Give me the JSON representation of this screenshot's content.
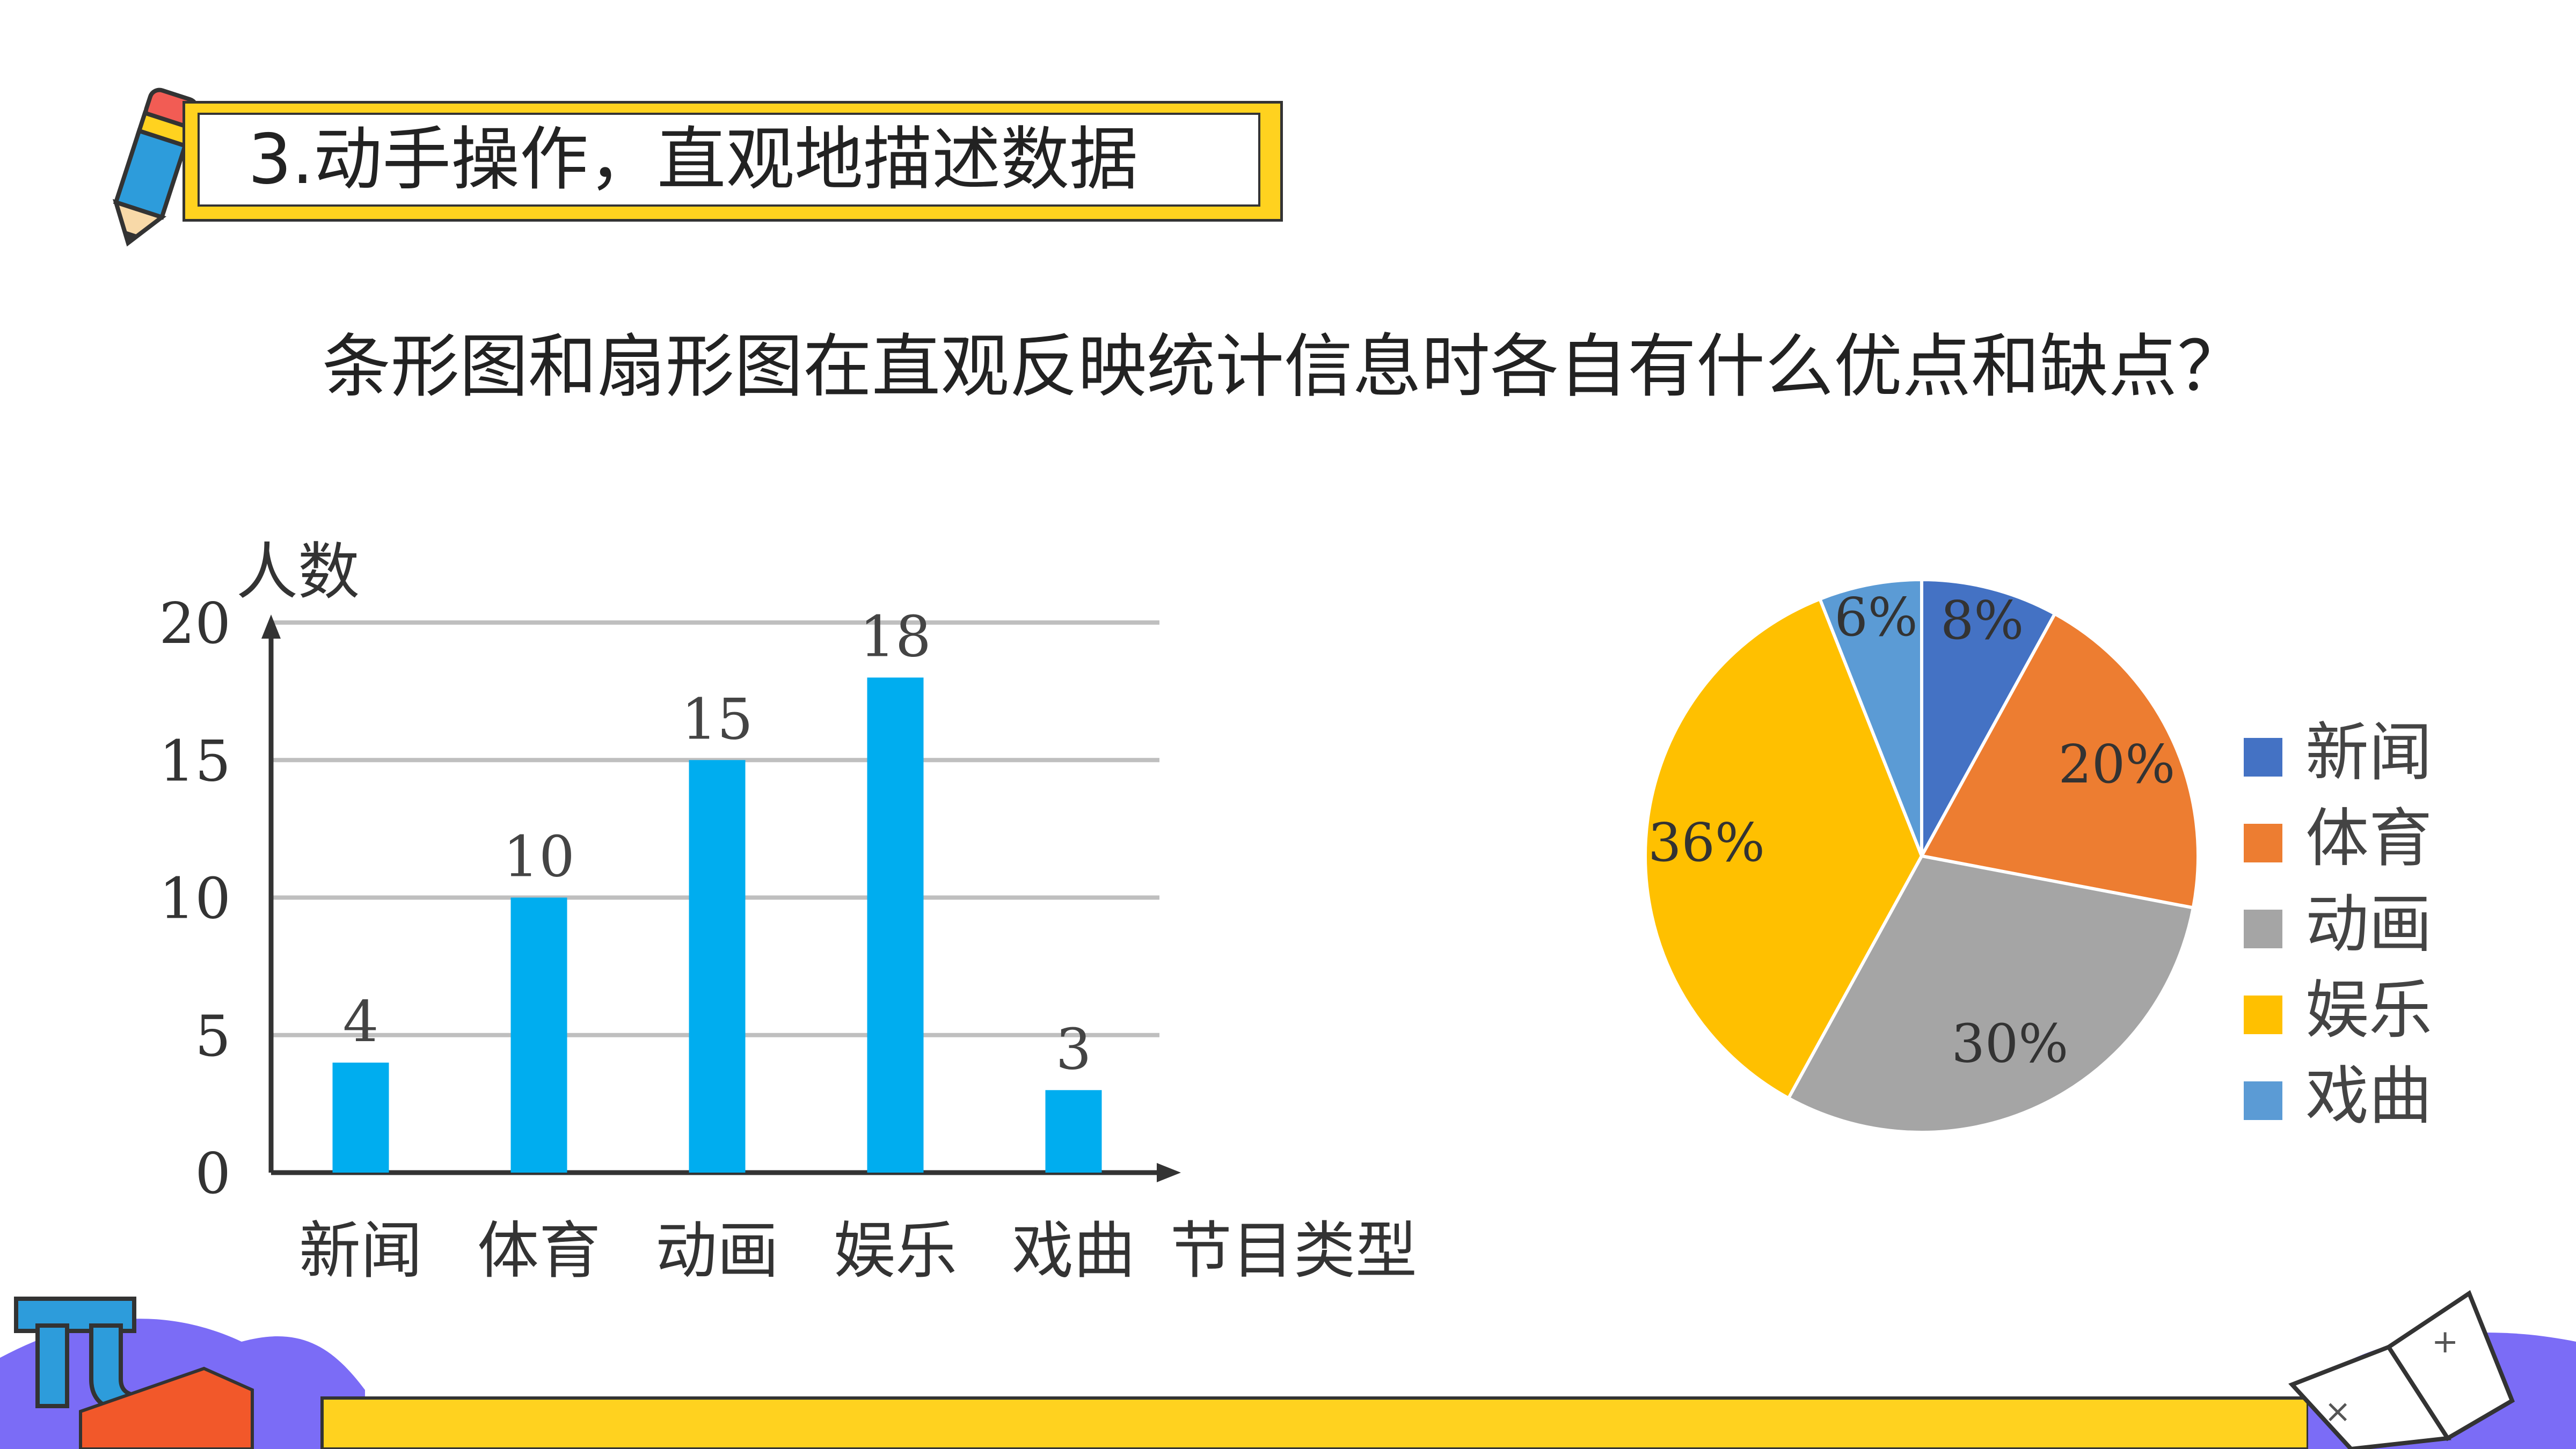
{
  "header": {
    "title": "3.动手操作，直观地描述数据"
  },
  "question": "条形图和扇形图在直观反映统计信息时各自有什么优点和缺点？",
  "colors": {
    "bar": "#00adef",
    "banner_yellow": "#ffd21f",
    "pie": [
      "#4472c4",
      "#ed7d31",
      "#a5a5a5",
      "#ffc000",
      "#5b9bd5"
    ]
  },
  "chart_data": [
    {
      "type": "bar",
      "categories": [
        "新闻",
        "体育",
        "动画",
        "娱乐",
        "戏曲"
      ],
      "values": [
        4,
        10,
        15,
        18,
        3
      ],
      "ylabel": "人数",
      "xlabel": "节目类型",
      "ylim": [
        0,
        20
      ],
      "yticks": [
        "0",
        "5",
        "10",
        "15",
        "20"
      ],
      "grid": true
    },
    {
      "type": "pie",
      "categories": [
        "新闻",
        "体育",
        "动画",
        "娱乐",
        "戏曲"
      ],
      "values": [
        8,
        20,
        30,
        36,
        6
      ],
      "labels": [
        "8%",
        "20%",
        "30%",
        "36%",
        "6%"
      ],
      "legend": "right"
    }
  ]
}
